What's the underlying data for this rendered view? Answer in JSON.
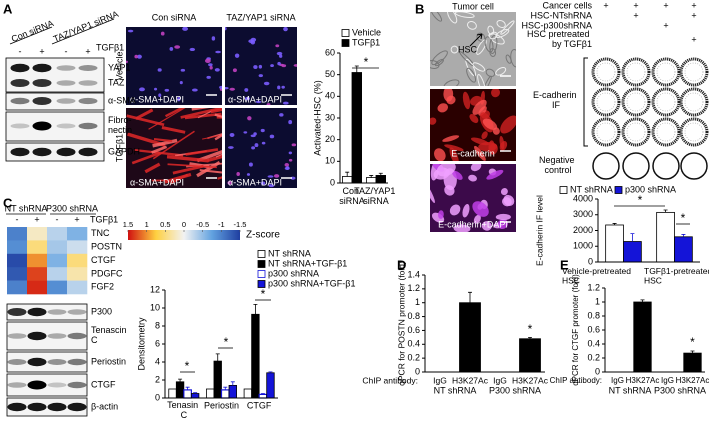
{
  "panels": {
    "A": {
      "label": "A",
      "lane_groups": [
        "Con siRNA",
        "TAZ/YAP1 siRNA"
      ],
      "treatment": "TGFβ1",
      "signs": [
        "-",
        "+",
        "-",
        "+"
      ],
      "blots": [
        "YAP1",
        "TAZ",
        "α-SMA",
        "Fibro-nectin",
        "GAPDH"
      ],
      "image_columns": [
        "Con siRNA",
        "TAZ/YAP1 siRNA"
      ],
      "image_rows": [
        "Vehicle",
        "TGFβ1"
      ],
      "image_captions": [
        "α-SMA+DAPI",
        "α-SMA+DAPI",
        "α-SMA+DAPI",
        "α-SMA+DAPI"
      ]
    },
    "B": {
      "label": "B",
      "image_title": "Tumor cell",
      "image_annotation": "HSC",
      "image_captions": [
        "E-cadherin",
        "E-cadherin+DAPI"
      ],
      "conditions": [
        {
          "label": "Cancer cells",
          "signs": [
            "+",
            "+",
            "+",
            "+"
          ]
        },
        {
          "label": "HSC-NTshRNA",
          "signs": [
            null,
            "+",
            null,
            "+"
          ]
        },
        {
          "label": "HSC-p300shRNA",
          "signs": [
            null,
            null,
            "+",
            null
          ]
        },
        {
          "label": "HSC pretreated by TGFβ1",
          "signs": [
            null,
            null,
            null,
            "+"
          ]
        }
      ],
      "stain_label": "E-cadherin IF",
      "control_label": "Negative control"
    },
    "C": {
      "label": "C",
      "lane_groups": [
        "NT shRNA",
        "P300 shRNA"
      ],
      "treatment": "TGFβ1",
      "signs": [
        "-",
        "+",
        "-",
        "+"
      ],
      "blots": [
        "P300",
        "Tenascin C",
        "Periostin",
        "CTGF",
        "β-actin"
      ]
    },
    "D": {
      "label": "D"
    },
    "E": {
      "label": "E"
    }
  },
  "chart_data": [
    {
      "type": "bar",
      "ylabel": "Activated-HSC (%)",
      "categories": [
        "Con siRNA",
        "TAZ/YAP1 siRNA"
      ],
      "series": [
        {
          "name": "Vehicle",
          "color": "#ffffff",
          "values": [
            3,
            2.5
          ],
          "errors": [
            2,
            1
          ]
        },
        {
          "name": "TGFβ1",
          "color": "#000000",
          "values": [
            51,
            3.5
          ],
          "errors": [
            3,
            1
          ]
        }
      ],
      "ylim": [
        0,
        60
      ],
      "yticks": [
        0,
        10,
        20,
        30,
        40,
        50,
        60
      ],
      "annotations": [
        "*"
      ]
    },
    {
      "type": "bar",
      "ylabel": "E-cadherin IF level",
      "categories": [
        "Vehicle-pretreated HSC",
        "TGFβ1-pretreated HSC"
      ],
      "series": [
        {
          "name": "NT shRNA",
          "color": "#ffffff",
          "values": [
            2350,
            3150
          ],
          "errors": [
            100,
            150
          ]
        },
        {
          "name": "p300 shRNA",
          "color": "#1414d8",
          "values": [
            1300,
            1600
          ],
          "errors": [
            500,
            150
          ]
        }
      ],
      "ylim": [
        0,
        4000
      ],
      "yticks": [
        0,
        1000,
        2000,
        3000,
        4000
      ],
      "annotations": [
        "*",
        "*"
      ]
    },
    {
      "type": "heatmap",
      "rows": [
        "TNC",
        "POSTN",
        "CTGF",
        "PDGFC",
        "FGF2"
      ],
      "values": [
        [
          -1.0,
          0.2,
          -0.3,
          -0.6
        ],
        [
          -0.9,
          0.5,
          -0.4,
          -0.2
        ],
        [
          -1.4,
          1.0,
          -0.6,
          0.5
        ],
        [
          -1.3,
          1.3,
          -0.3,
          0.3
        ],
        [
          -1.0,
          1.4,
          -0.9,
          -0.3
        ]
      ],
      "zlim": [
        -1.5,
        1.5
      ],
      "zticks": [
        1.5,
        1,
        0.5,
        0,
        -0.5,
        -1,
        -1.5
      ],
      "colorbar_reversed": true,
      "colorbar_label": "Z-score",
      "colors": [
        "#1f3ea0",
        "#62a2e0",
        "#f2f2f2",
        "#ffd040",
        "#d01010"
      ]
    },
    {
      "type": "bar",
      "ylabel": "Densitometry",
      "categories": [
        "Tenasin C",
        "Periostin",
        "CTGF"
      ],
      "series": [
        {
          "name": "NT shRNA",
          "color": "#ffffff",
          "values": [
            1,
            1,
            1
          ]
        },
        {
          "name": "NT shRNA+TGF-β1",
          "color": "#000000",
          "values": [
            1.8,
            4.1,
            9.3
          ],
          "errors": [
            0.3,
            0.8,
            1.1
          ]
        },
        {
          "name": "p300 shRNA",
          "color": "#ffffff",
          "edgecolor": "#1414d8",
          "values": [
            0.9,
            0.9,
            0.4
          ],
          "errors": [
            0.3,
            0.3,
            0.1
          ]
        },
        {
          "name": "p300 shRNA+TGF-β1",
          "color": "#1414d8",
          "values": [
            0.5,
            1.4,
            2.8
          ],
          "errors": [
            0.1,
            0.4,
            0.1
          ]
        }
      ],
      "ylim": [
        0,
        12
      ],
      "yticks": [
        0,
        2,
        4,
        6,
        8,
        10,
        12
      ],
      "annotations": [
        "*",
        "*",
        "*"
      ]
    },
    {
      "type": "bar",
      "ylabel": "qPCR for POSTN promoter (fold)",
      "xlabel": "ChIP antibody:",
      "categories": [
        "IgG",
        "H3K27Ac",
        "IgG",
        "H3K27Ac"
      ],
      "groups": [
        "NT shRNA",
        "P300 shRNA"
      ],
      "series": [
        {
          "color": "#000000",
          "values": [
            0,
            1,
            0,
            0.48
          ],
          "errors": [
            null,
            0.15,
            null,
            0.02
          ]
        }
      ],
      "ylim": [
        0,
        1.4
      ],
      "yticks": [
        0,
        0.2,
        0.4,
        0.6,
        0.8,
        1,
        1.2,
        1.4
      ],
      "annotations": [
        "*"
      ]
    },
    {
      "type": "bar",
      "ylabel": "qPCR for CTGF promoter (fold)",
      "xlabel": "ChIP antibody:",
      "categories": [
        "IgG",
        "H3K27Ac",
        "IgG",
        "H3K27Ac"
      ],
      "groups": [
        "NT shRNA",
        "P300 shRNA"
      ],
      "series": [
        {
          "color": "#000000",
          "values": [
            0,
            1,
            0,
            0.27
          ],
          "errors": [
            null,
            0.03,
            null,
            0.03
          ]
        }
      ],
      "ylim": [
        0,
        1.2
      ],
      "yticks": [
        0,
        0.2,
        0.4,
        0.6,
        0.8,
        1,
        1.2
      ],
      "annotations": [
        "*"
      ]
    }
  ]
}
